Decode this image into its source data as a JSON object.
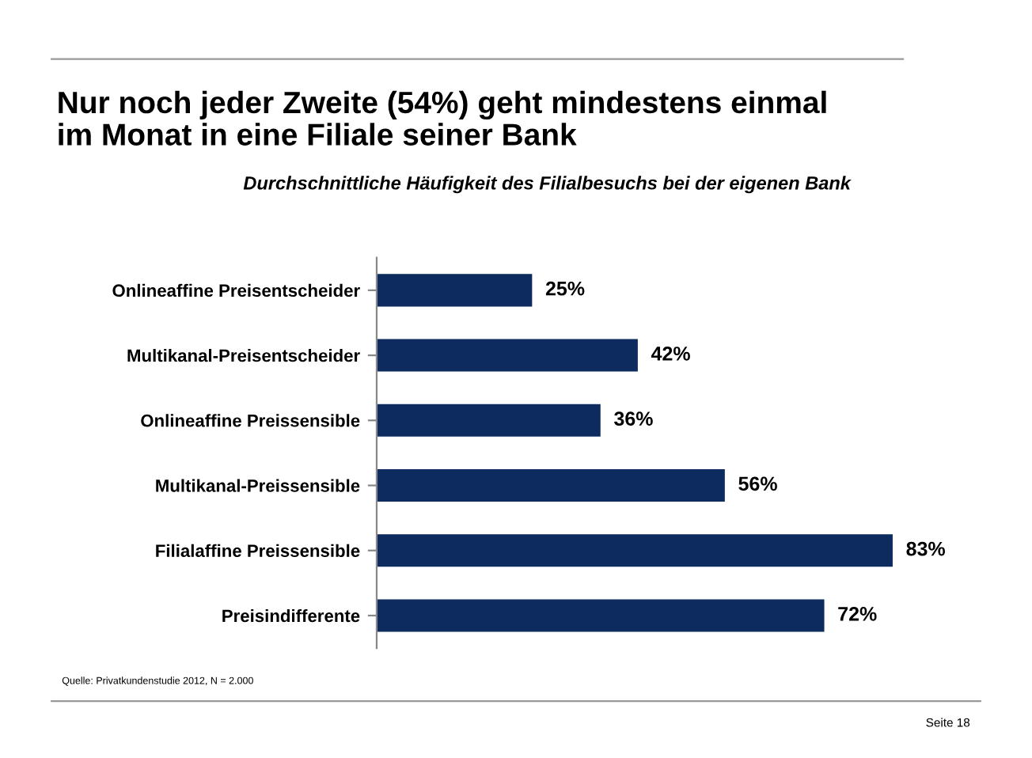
{
  "chart_data": {
    "type": "bar",
    "orientation": "horizontal",
    "title": "Nur noch jeder Zweite (54%) geht mindestens einmal\nim Monat in eine Filiale seiner Bank",
    "subtitle": "Durchschnittliche Häufigkeit des Filialbesuchs bei der eigenen Bank",
    "categories": [
      "Onlineaffine Preisentscheider",
      "Multikanal-Preisentscheider",
      "Onlineaffine Preissensible",
      "Multikanal-Preissensible",
      "Filialaffine Preissensible",
      "Preisindifferente"
    ],
    "values": [
      25,
      42,
      36,
      56,
      83,
      72
    ],
    "value_labels": [
      "25%",
      "42%",
      "36%",
      "56%",
      "83%",
      "72%"
    ],
    "color": "#0d2b5e",
    "grid": false,
    "legend": false,
    "annotations": [
      "Quelle: Privatkundenstudie 2012, N = 2.000",
      "Seite 18"
    ]
  }
}
